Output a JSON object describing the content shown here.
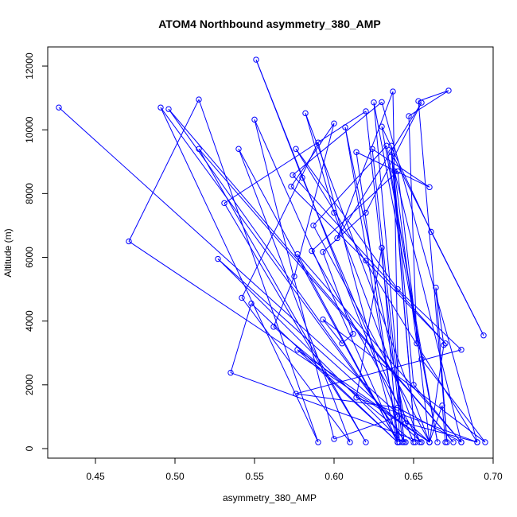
{
  "chart_data": {
    "type": "scatter",
    "title": "ATOM4 Northbound asymmetry_380_AMP",
    "xlabel": "asymmetry_380_AMP",
    "ylabel": "Altitude (m)",
    "xlim": [
      0.42,
      0.7
    ],
    "ylim": [
      -300,
      12600
    ],
    "x_ticks": [
      "0.45",
      "0.50",
      "0.55",
      "0.60",
      "0.65",
      "0.70"
    ],
    "y_ticks": [
      "0",
      "2000",
      "4000",
      "6000",
      "8000",
      "10000",
      "12000"
    ],
    "grid": false,
    "legend": "none",
    "series": [
      {
        "color": "#0000ff",
        "marker": "open-circle",
        "line": true,
        "points": [
          [
            0.427,
            10700
          ],
          [
            0.66,
            200
          ],
          [
            0.471,
            6500
          ],
          [
            0.515,
            10950
          ],
          [
            0.59,
            200
          ],
          [
            0.491,
            10700
          ],
          [
            0.645,
            200
          ],
          [
            0.496,
            10650
          ],
          [
            0.675,
            200
          ],
          [
            0.515,
            9400
          ],
          [
            0.62,
            200
          ],
          [
            0.531,
            7700
          ],
          [
            0.62,
            10580
          ],
          [
            0.643,
            200
          ],
          [
            0.527,
            5950
          ],
          [
            0.655,
            200
          ],
          [
            0.535,
            2380
          ],
          [
            0.548,
            4550
          ],
          [
            0.64,
            200
          ],
          [
            0.54,
            9400
          ],
          [
            0.61,
            200
          ],
          [
            0.542,
            4730
          ],
          [
            0.59,
            9600
          ],
          [
            0.64,
            200
          ],
          [
            0.55,
            10320
          ],
          [
            0.6,
            300
          ],
          [
            0.64,
            1000
          ],
          [
            0.551,
            12200
          ],
          [
            0.58,
            8500
          ],
          [
            0.65,
            200
          ],
          [
            0.562,
            3820
          ],
          [
            0.575,
            5400
          ],
          [
            0.6,
            10200
          ],
          [
            0.573,
            8220
          ],
          [
            0.62,
            5900
          ],
          [
            0.67,
            3300
          ],
          [
            0.574,
            8580
          ],
          [
            0.63,
            10870
          ],
          [
            0.69,
            200
          ],
          [
            0.576,
            9400
          ],
          [
            0.64,
            5000
          ],
          [
            0.68,
            3100
          ],
          [
            0.576,
            1720
          ],
          [
            0.64,
            1280
          ],
          [
            0.68,
            200
          ],
          [
            0.577,
            6100
          ],
          [
            0.64,
            200
          ],
          [
            0.577,
            3100
          ],
          [
            0.66,
            200
          ],
          [
            0.582,
            10520
          ],
          [
            0.6,
            7400
          ],
          [
            0.654,
            200
          ],
          [
            0.586,
            6200
          ],
          [
            0.64,
            8700
          ],
          [
            0.66,
            200
          ],
          [
            0.587,
            7000
          ],
          [
            0.633,
            9500
          ],
          [
            0.655,
            2800
          ],
          [
            0.695,
            200
          ],
          [
            0.593,
            4050
          ],
          [
            0.605,
            3300
          ],
          [
            0.612,
            3600
          ],
          [
            0.593,
            6170
          ],
          [
            0.62,
            7400
          ],
          [
            0.655,
            10850
          ],
          [
            0.602,
            6600
          ],
          [
            0.637,
            11200
          ],
          [
            0.641,
            200
          ],
          [
            0.607,
            10080
          ],
          [
            0.645,
            800
          ],
          [
            0.69,
            200
          ],
          [
            0.614,
            1600
          ],
          [
            0.63,
            6300
          ],
          [
            0.64,
            200
          ],
          [
            0.614,
            9300
          ],
          [
            0.66,
            8200
          ],
          [
            0.624,
            9400
          ],
          [
            0.644,
            200
          ],
          [
            0.625,
            10860
          ],
          [
            0.665,
            200
          ],
          [
            0.63,
            10100
          ],
          [
            0.661,
            6800
          ],
          [
            0.694,
            3550
          ],
          [
            0.636,
            9300
          ],
          [
            0.651,
            200
          ],
          [
            0.636,
            9500
          ],
          [
            0.65,
            2000
          ],
          [
            0.68,
            200
          ],
          [
            0.638,
            8700
          ],
          [
            0.652,
            3300
          ],
          [
            0.647,
            10430
          ],
          [
            0.672,
            11230
          ],
          [
            0.653,
            10900
          ],
          [
            0.671,
            200
          ],
          [
            0.664,
            5050
          ],
          [
            0.669,
            3250
          ],
          [
            0.66,
            200
          ],
          [
            0.668,
            1350
          ],
          [
            0.67,
            200
          ]
        ]
      }
    ]
  }
}
